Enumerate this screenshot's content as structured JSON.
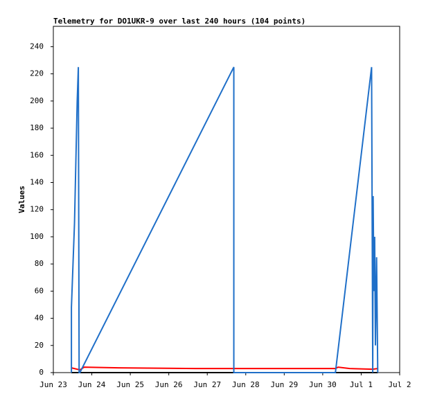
{
  "chart_data": {
    "type": "line",
    "title": "Telemetry for DO1UKR-9 over last 240 hours (104 points)",
    "y_label": "Values",
    "xlim": [
      0,
      9
    ],
    "xticks": [
      {
        "value": 0,
        "label": "Jun 23"
      },
      {
        "value": 1,
        "label": "Jun 24"
      },
      {
        "value": 2,
        "label": "Jun 25"
      },
      {
        "value": 3,
        "label": "Jun 26"
      },
      {
        "value": 4,
        "label": "Jun 27"
      },
      {
        "value": 5,
        "label": "Jun 28"
      },
      {
        "value": 6,
        "label": "Jun 29"
      },
      {
        "value": 7,
        "label": "Jun 30"
      },
      {
        "value": 8,
        "label": "Jul 1"
      },
      {
        "value": 9,
        "label": "Jul 2"
      }
    ],
    "ylim": [
      0,
      255
    ],
    "yticks": [
      0,
      20,
      40,
      60,
      80,
      100,
      120,
      140,
      160,
      180,
      200,
      220,
      240
    ],
    "series": [
      {
        "color": "#000000",
        "x": [
          0.47,
          8.43
        ],
        "values": [
          0,
          0
        ]
      },
      {
        "color": "#ff0000",
        "x": [
          0.47,
          0.69,
          0.8,
          1.7,
          3.7,
          7.33,
          7.4,
          7.7,
          8.3,
          8.43
        ],
        "values": [
          3.5,
          2,
          4,
          3.5,
          3,
          3,
          4,
          3,
          2.5,
          3
        ]
      },
      {
        "color": "#1f6fc8",
        "x": [
          0.47,
          0.47,
          0.55,
          0.62,
          0.65,
          0.67,
          0.69,
          4.69,
          4.69,
          7.33,
          8.27,
          8.3,
          8.31,
          8.33,
          8.35,
          8.37,
          8.4,
          8.43
        ],
        "values": [
          0,
          48,
          110,
          200,
          225,
          0,
          0,
          225,
          0,
          0,
          225,
          0,
          130,
          60,
          100,
          20,
          85,
          0
        ]
      }
    ]
  }
}
